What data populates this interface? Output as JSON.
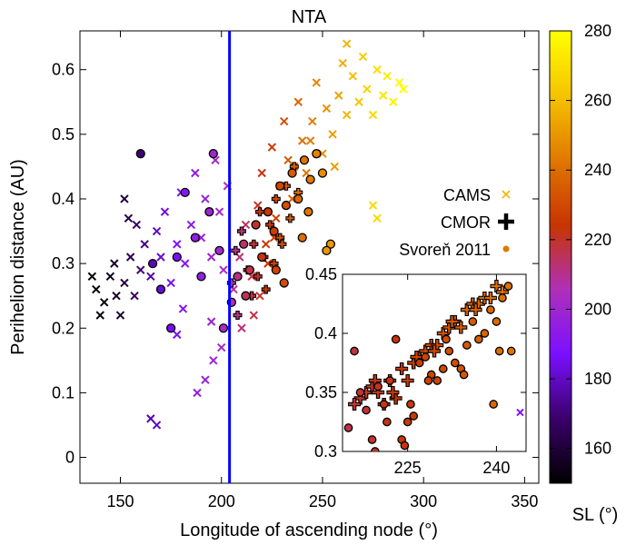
{
  "chart_data": {
    "type": "scatter",
    "title": "NTA",
    "xlabel": "Longitude of ascending node (°)",
    "ylabel": "Perihelion distance (AU)",
    "xlim": [
      130,
      357
    ],
    "ylim": [
      -0.04,
      0.66
    ],
    "xticks": [
      "150",
      "200",
      "250",
      "300",
      "350"
    ],
    "yticks": [
      "0",
      "0.1",
      "0.2",
      "0.3",
      "0.4",
      "0.5",
      "0.6"
    ],
    "vertical_line": {
      "x": 204,
      "color": "#0000ff"
    },
    "colorbar": {
      "label": "SL (°)",
      "range": [
        150,
        280
      ],
      "ticks": [
        "160",
        "180",
        "200",
        "220",
        "240",
        "260",
        "280"
      ],
      "colormap": [
        "#000000",
        "#3a006a",
        "#7a10ff",
        "#b030b8",
        "#c83400",
        "#e07800",
        "#f6c400",
        "#ffff00"
      ]
    },
    "legend": [
      {
        "label": "CAMS",
        "marker": "x",
        "color": "#f4b400"
      },
      {
        "label": "CMOR",
        "marker": "+",
        "color": "#000000"
      },
      {
        "label": "Svoreň 2011",
        "marker": "circle",
        "color": "#e07800"
      }
    ],
    "series": [
      {
        "name": "CAMS",
        "marker": "x",
        "points": [
          [
            138,
            0.26,
            152
          ],
          [
            142,
            0.24,
            153
          ],
          [
            145,
            0.28,
            155
          ],
          [
            148,
            0.25,
            156
          ],
          [
            150,
            0.22,
            158
          ],
          [
            136,
            0.28,
            151
          ],
          [
            140,
            0.22,
            152
          ],
          [
            147,
            0.3,
            157
          ],
          [
            152,
            0.27,
            161
          ],
          [
            155,
            0.31,
            165
          ],
          [
            157,
            0.25,
            167
          ],
          [
            160,
            0.29,
            170
          ],
          [
            162,
            0.33,
            172
          ],
          [
            158,
            0.36,
            168
          ],
          [
            165,
            0.28,
            176
          ],
          [
            168,
            0.35,
            180
          ],
          [
            170,
            0.31,
            182
          ],
          [
            172,
            0.38,
            184
          ],
          [
            175,
            0.27,
            186
          ],
          [
            178,
            0.33,
            188
          ],
          [
            180,
            0.41,
            190
          ],
          [
            182,
            0.3,
            191
          ],
          [
            185,
            0.36,
            193
          ],
          [
            187,
            0.44,
            195
          ],
          [
            190,
            0.34,
            196
          ],
          [
            192,
            0.4,
            197
          ],
          [
            195,
            0.31,
            199
          ],
          [
            197,
            0.46,
            200
          ],
          [
            199,
            0.38,
            201
          ],
          [
            201,
            0.29,
            203
          ],
          [
            203,
            0.42,
            205
          ],
          [
            152,
            0.4,
            160
          ],
          [
            154,
            0.37,
            163
          ],
          [
            165,
            0.06,
            177
          ],
          [
            168,
            0.05,
            179
          ],
          [
            188,
            0.1,
            194
          ],
          [
            192,
            0.12,
            196
          ],
          [
            196,
            0.15,
            199
          ],
          [
            200,
            0.17,
            202
          ],
          [
            195,
            0.21,
            198
          ],
          [
            178,
            0.19,
            188
          ],
          [
            181,
            0.23,
            190
          ],
          [
            206,
            0.26,
            208
          ],
          [
            209,
            0.31,
            212
          ],
          [
            212,
            0.36,
            215
          ],
          [
            215,
            0.28,
            218
          ],
          [
            218,
            0.39,
            220
          ],
          [
            220,
            0.44,
            222
          ],
          [
            222,
            0.33,
            224
          ],
          [
            225,
            0.48,
            226
          ],
          [
            227,
            0.37,
            228
          ],
          [
            229,
            0.42,
            230
          ],
          [
            231,
            0.52,
            232
          ],
          [
            233,
            0.46,
            234
          ],
          [
            235,
            0.4,
            236
          ],
          [
            238,
            0.55,
            238
          ],
          [
            240,
            0.49,
            240
          ],
          [
            242,
            0.44,
            242
          ],
          [
            245,
            0.52,
            244
          ],
          [
            247,
            0.58,
            246
          ],
          [
            250,
            0.47,
            248
          ],
          [
            252,
            0.54,
            250
          ],
          [
            255,
            0.5,
            252
          ],
          [
            258,
            0.56,
            254
          ],
          [
            260,
            0.61,
            256
          ],
          [
            262,
            0.53,
            258
          ],
          [
            265,
            0.59,
            260
          ],
          [
            268,
            0.55,
            262
          ],
          [
            270,
            0.62,
            264
          ],
          [
            272,
            0.57,
            266
          ],
          [
            275,
            0.53,
            268
          ],
          [
            277,
            0.6,
            270
          ],
          [
            280,
            0.56,
            272
          ],
          [
            282,
            0.59,
            274
          ],
          [
            285,
            0.55,
            276
          ],
          [
            288,
            0.58,
            278
          ],
          [
            290,
            0.57,
            280
          ],
          [
            275,
            0.39,
            268
          ],
          [
            277,
            0.37,
            268
          ],
          [
            262,
            0.64,
            258
          ],
          [
            216,
            0.22,
            218
          ],
          [
            219,
            0.25,
            220
          ],
          [
            223,
            0.3,
            224
          ],
          [
            226,
            0.34,
            227
          ],
          [
            210,
            0.2,
            212
          ],
          [
            236,
            0.45,
            236
          ],
          [
            244,
            0.49,
            243
          ],
          [
            256,
            0.45,
            252
          ]
        ]
      },
      {
        "name": "CMOR",
        "marker": "+",
        "points": [
          [
            205,
            0.27,
            207
          ],
          [
            207,
            0.32,
            210
          ],
          [
            210,
            0.35,
            213
          ],
          [
            213,
            0.29,
            216
          ],
          [
            216,
            0.33,
            219
          ],
          [
            219,
            0.38,
            222
          ],
          [
            221,
            0.31,
            224
          ],
          [
            224,
            0.36,
            226
          ],
          [
            227,
            0.4,
            229
          ],
          [
            229,
            0.34,
            231
          ],
          [
            232,
            0.42,
            233
          ],
          [
            234,
            0.37,
            235
          ],
          [
            236,
            0.45,
            237
          ],
          [
            238,
            0.41,
            239
          ],
          [
            215,
            0.25,
            218
          ],
          [
            218,
            0.28,
            220
          ],
          [
            222,
            0.26,
            224
          ],
          [
            226,
            0.3,
            227
          ],
          [
            230,
            0.33,
            231
          ],
          [
            208,
            0.22,
            211
          ]
        ]
      },
      {
        "name": "Svoreň 2011",
        "marker": "circle",
        "points": [
          [
            160,
            0.47,
            170
          ],
          [
            166,
            0.3,
            178
          ],
          [
            170,
            0.26,
            182
          ],
          [
            175,
            0.2,
            186
          ],
          [
            178,
            0.31,
            188
          ],
          [
            182,
            0.41,
            191
          ],
          [
            187,
            0.34,
            195
          ],
          [
            190,
            0.28,
            196
          ],
          [
            194,
            0.38,
            198
          ],
          [
            196,
            0.47,
            200
          ],
          [
            199,
            0.32,
            201
          ],
          [
            201,
            0.2,
            203
          ],
          [
            205,
            0.24,
            207
          ],
          [
            208,
            0.28,
            211
          ],
          [
            211,
            0.33,
            214
          ],
          [
            214,
            0.29,
            217
          ],
          [
            217,
            0.36,
            220
          ],
          [
            220,
            0.31,
            223
          ],
          [
            223,
            0.38,
            225
          ],
          [
            226,
            0.35,
            227
          ],
          [
            229,
            0.42,
            230
          ],
          [
            232,
            0.39,
            232
          ],
          [
            235,
            0.44,
            235
          ],
          [
            238,
            0.4,
            238
          ],
          [
            241,
            0.46,
            241
          ],
          [
            244,
            0.43,
            243
          ],
          [
            247,
            0.47,
            246
          ],
          [
            250,
            0.44,
            248
          ],
          [
            240,
            0.34,
            240
          ],
          [
            227,
            0.29,
            228
          ],
          [
            212,
            0.25,
            215
          ],
          [
            254,
            0.33,
            251
          ],
          [
            252,
            0.32,
            250
          ],
          [
            243,
            0.38,
            242
          ],
          [
            231,
            0.27,
            231
          ]
        ]
      }
    ],
    "inset": {
      "xlim": [
        214,
        245
      ],
      "ylim": [
        0.3,
        0.45
      ],
      "xticks": [
        "225",
        "240"
      ],
      "yticks": [
        "0.3",
        "0.35",
        "0.4",
        "0.45"
      ],
      "series": [
        {
          "name": "CMOR",
          "marker": "+",
          "points": [
            [
              217,
              0.345,
              220
            ],
            [
              218,
              0.35,
              221
            ],
            [
              219,
              0.355,
              221
            ],
            [
              220,
              0.35,
              222
            ],
            [
              221,
              0.34,
              223
            ],
            [
              222,
              0.36,
              224
            ],
            [
              223,
              0.345,
              225
            ],
            [
              224,
              0.37,
              225
            ],
            [
              225,
              0.36,
              226
            ],
            [
              226,
              0.375,
              227
            ],
            [
              227,
              0.38,
              228
            ],
            [
              228,
              0.385,
              229
            ],
            [
              229,
              0.39,
              230
            ],
            [
              230,
              0.39,
              231
            ],
            [
              231,
              0.4,
              232
            ],
            [
              232,
              0.405,
              233
            ],
            [
              233,
              0.41,
              234
            ],
            [
              234,
              0.405,
              235
            ],
            [
              235,
              0.42,
              236
            ],
            [
              236,
              0.425,
              237
            ],
            [
              237,
              0.425,
              238
            ],
            [
              238,
              0.43,
              239
            ],
            [
              239,
              0.43,
              239
            ],
            [
              240,
              0.44,
              240
            ],
            [
              241,
              0.435,
              241
            ],
            [
              216,
              0.34,
              219
            ],
            [
              219.5,
              0.36,
              222
            ],
            [
              222.5,
              0.35,
              224
            ],
            [
              226.5,
              0.38,
              228
            ],
            [
              229.5,
              0.385,
              230
            ],
            [
              232.5,
              0.41,
              234
            ],
            [
              236.5,
              0.42,
              237
            ]
          ]
        },
        {
          "name": "Svoreň 2011",
          "marker": "circle",
          "points": [
            [
              215,
              0.32,
              217
            ],
            [
              216,
              0.385,
              218
            ],
            [
              217,
              0.35,
              219
            ],
            [
              218,
              0.335,
              219
            ],
            [
              219,
              0.31,
              220
            ],
            [
              220,
              0.355,
              221
            ],
            [
              221,
              0.34,
              222
            ],
            [
              222,
              0.36,
              223
            ],
            [
              223,
              0.395,
              224
            ],
            [
              224,
              0.31,
              225
            ],
            [
              224.5,
              0.305,
              225
            ],
            [
              225,
              0.325,
              225
            ],
            [
              226,
              0.33,
              226
            ],
            [
              227,
              0.375,
              227
            ],
            [
              228,
              0.38,
              228
            ],
            [
              229,
              0.365,
              229
            ],
            [
              230,
              0.36,
              229
            ],
            [
              231,
              0.37,
              230
            ],
            [
              232,
              0.385,
              231
            ],
            [
              233,
              0.375,
              232
            ],
            [
              234,
              0.37,
              233
            ],
            [
              235,
              0.39,
              234
            ],
            [
              236,
              0.41,
              235
            ],
            [
              237,
              0.395,
              236
            ],
            [
              238,
              0.4,
              237
            ],
            [
              239,
              0.42,
              238
            ],
            [
              240,
              0.41,
              239
            ],
            [
              241,
              0.43,
              240
            ],
            [
              242,
              0.44,
              241
            ],
            [
              240.5,
              0.385,
              240
            ],
            [
              239.5,
              0.34,
              239
            ],
            [
              242.5,
              0.385,
              242
            ],
            [
              234.5,
              0.365,
              234
            ],
            [
              231.5,
              0.395,
              231
            ],
            [
              228.5,
              0.36,
              228
            ],
            [
              225.5,
              0.34,
              226
            ],
            [
              221.5,
              0.325,
              222
            ],
            [
              219.5,
              0.3,
              220
            ]
          ]
        },
        {
          "name": "CAMS",
          "marker": "x",
          "points": [
            [
              244,
              0.333,
              190
            ]
          ]
        }
      ]
    }
  }
}
